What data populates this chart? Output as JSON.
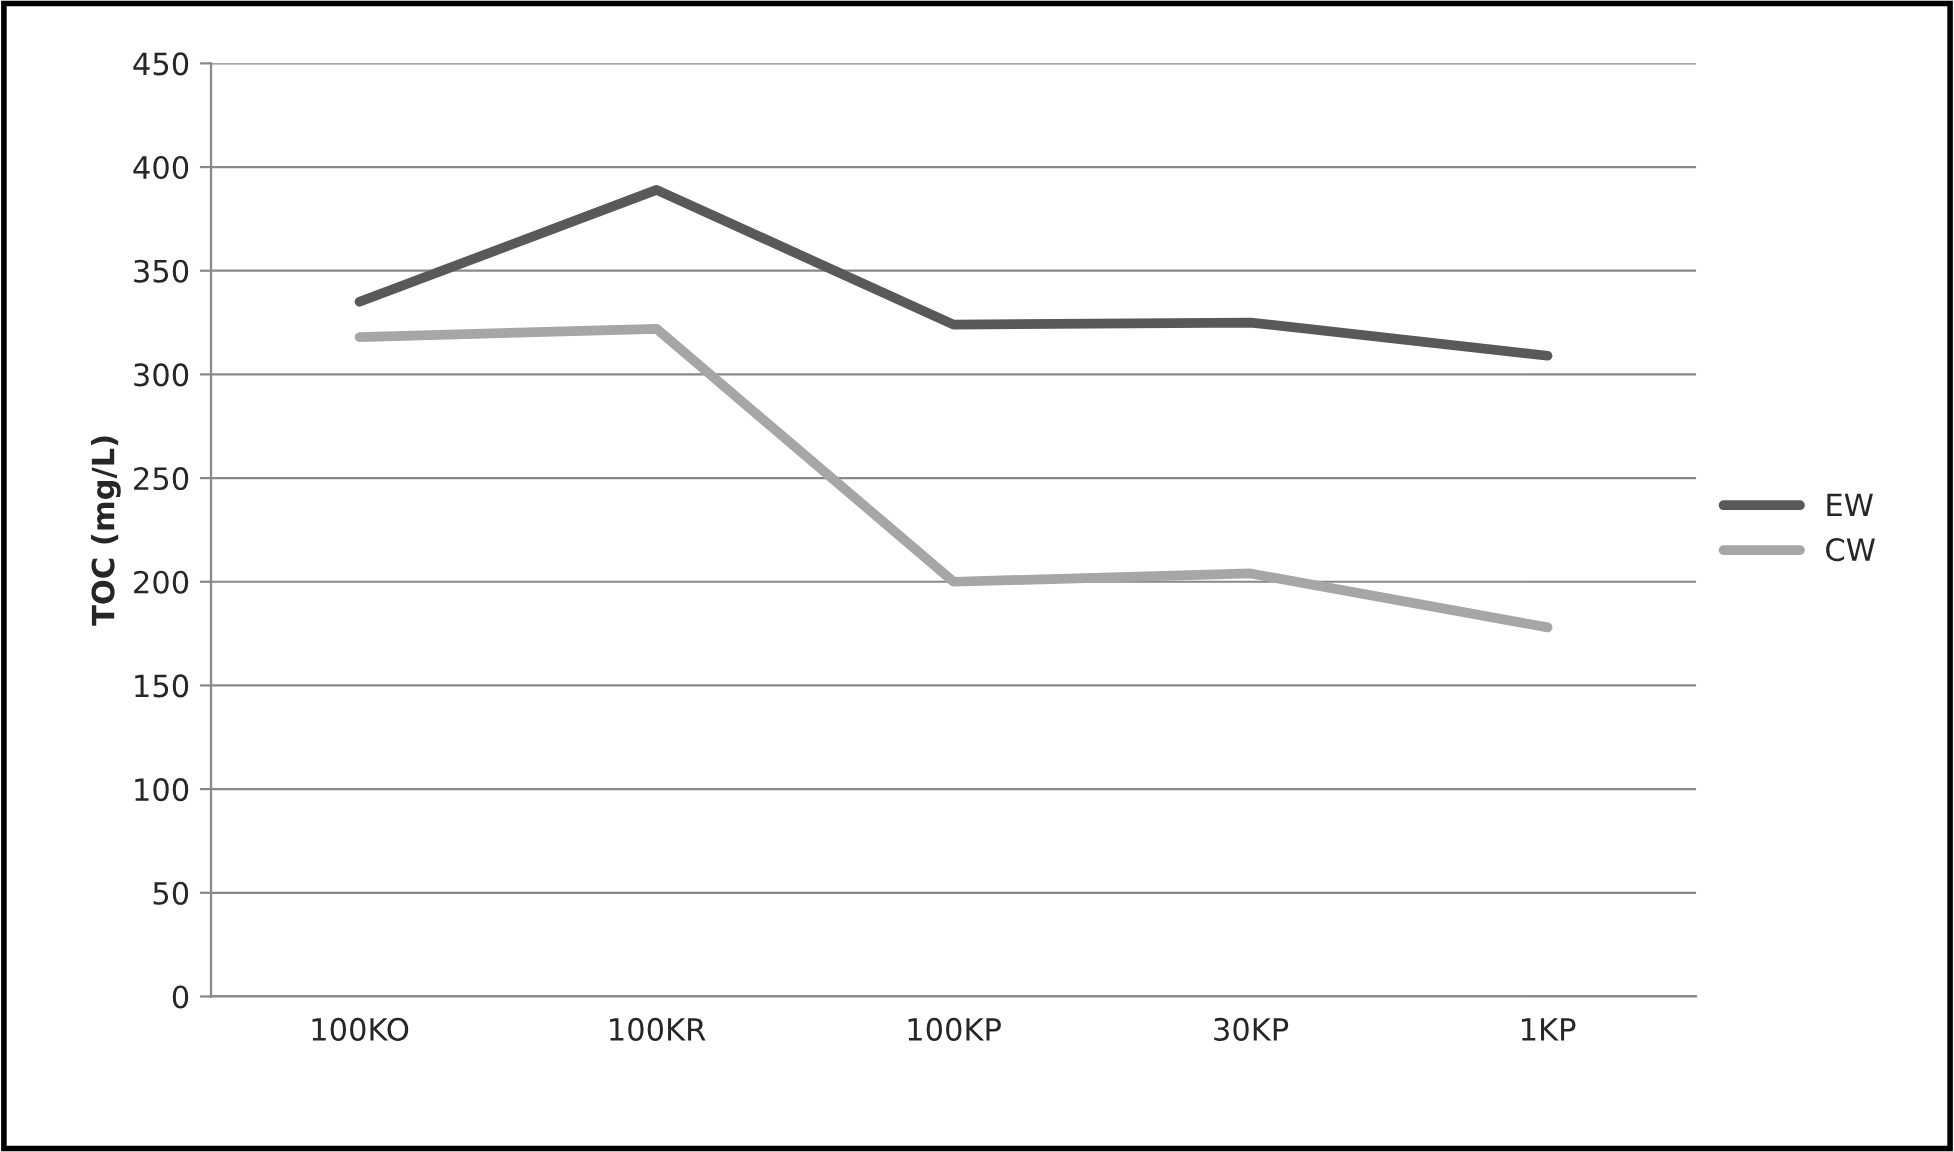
{
  "chart_data": {
    "type": "line",
    "ylabel": "TOC (mg/L)",
    "categories": [
      "100KO",
      "100KR",
      "100KP",
      "30KP",
      "1KP"
    ],
    "series": [
      {
        "name": "EW",
        "color": "#595959",
        "values": [
          335,
          389,
          324,
          325,
          309
        ]
      },
      {
        "name": "CW",
        "color": "#a6a6a6",
        "values": [
          318,
          322,
          200,
          204,
          178
        ]
      }
    ],
    "ylim": [
      0,
      450
    ],
    "yticks": [
      0,
      50,
      100,
      150,
      200,
      250,
      300,
      350,
      400,
      450
    ],
    "grid": "y",
    "legend": "right",
    "marker": "none",
    "line_style": "solid"
  }
}
